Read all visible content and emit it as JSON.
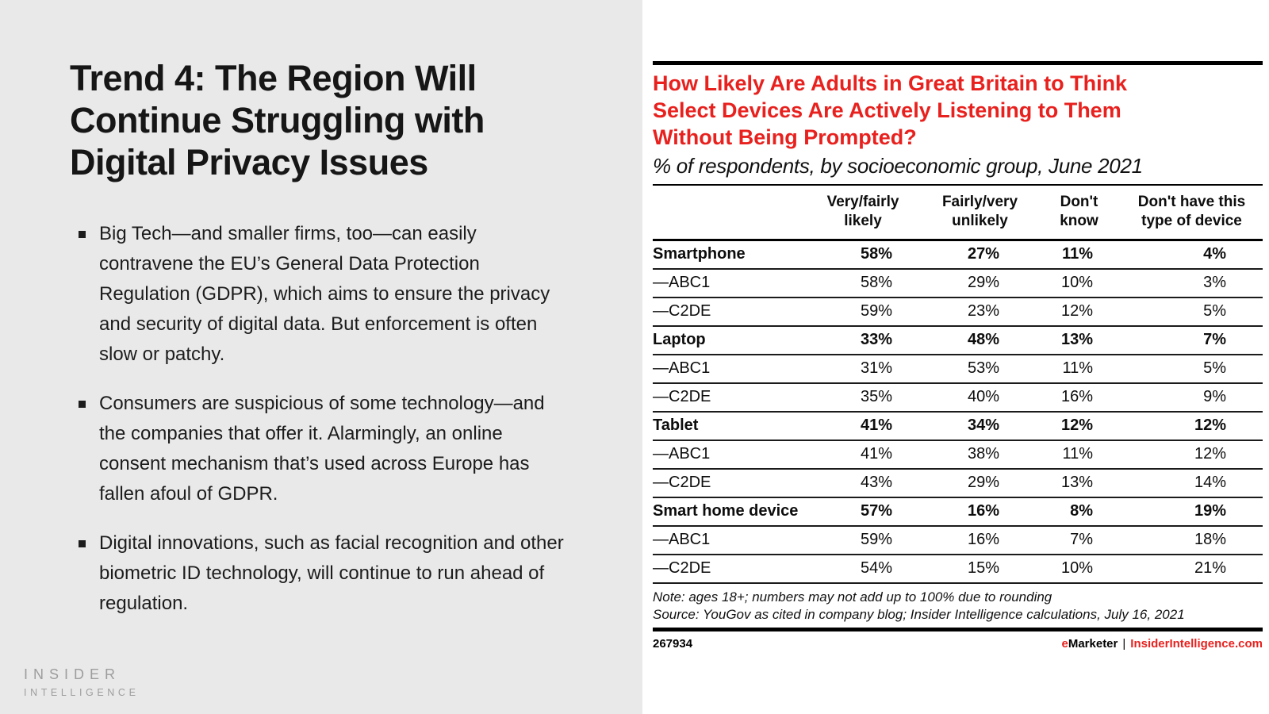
{
  "left_panel": {
    "title_lines": [
      "Trend 4: The Region Will",
      "Continue Struggling with",
      "Digital Privacy Issues"
    ],
    "bullets": [
      "Big Tech—and smaller firms, too—can easily contravene the EU’s General Data Protection Regulation (GDPR), which aims to ensure the privacy and security of digital data. But enforcement is often slow or patchy.",
      "Consumers are suspicious of some technology—and the companies that offer it. Alarmingly, an online consent mechanism that’s used across Europe has fallen afoul of GDPR.",
      "Digital innovations, such as facial recognition and other biometric ID technology, will continue to run ahead of regulation."
    ],
    "logo": {
      "line1": "INSIDER",
      "line2": "INTELLIGENCE"
    }
  },
  "chart": {
    "title_lines": [
      "How Likely Are Adults in Great Britain to Think",
      "Select Devices Are Actively Listening to Them",
      "Without Being Prompted?"
    ],
    "subtitle": "% of respondents, by socioeconomic group, June 2021",
    "columns": [
      {
        "line1": "Very/fairly",
        "line2": "likely"
      },
      {
        "line1": "Fairly/very",
        "line2": "unlikely"
      },
      {
        "line1": "Don't",
        "line2": "know"
      },
      {
        "line1": "Don't have this",
        "line2": "type of device"
      }
    ],
    "rows": [
      {
        "label": "Smartphone",
        "values": [
          "58%",
          "27%",
          "11%",
          "4%"
        ]
      },
      {
        "label": "—ABC1",
        "values": [
          "58%",
          "29%",
          "10%",
          "3%"
        ]
      },
      {
        "label": "—C2DE",
        "values": [
          "59%",
          "23%",
          "12%",
          "5%"
        ]
      },
      {
        "label": "Laptop",
        "values": [
          "33%",
          "48%",
          "13%",
          "7%"
        ]
      },
      {
        "label": "—ABC1",
        "values": [
          "31%",
          "53%",
          "11%",
          "5%"
        ]
      },
      {
        "label": "—C2DE",
        "values": [
          "35%",
          "40%",
          "16%",
          "9%"
        ]
      },
      {
        "label": "Tablet",
        "values": [
          "41%",
          "34%",
          "12%",
          "12%"
        ]
      },
      {
        "label": "—ABC1",
        "values": [
          "41%",
          "38%",
          "11%",
          "12%"
        ]
      },
      {
        "label": "—C2DE",
        "values": [
          "43%",
          "29%",
          "13%",
          "14%"
        ]
      },
      {
        "label": "Smart home device",
        "values": [
          "57%",
          "16%",
          "8%",
          "19%"
        ]
      },
      {
        "label": "—ABC1",
        "values": [
          "59%",
          "16%",
          "7%",
          "18%"
        ]
      },
      {
        "label": "—C2DE",
        "values": [
          "54%",
          "15%",
          "10%",
          "21%"
        ]
      }
    ],
    "note": "Note: ages 18+; numbers may not add up to 100% due to rounding",
    "source": "Source: YouGov as cited in company blog; Insider Intelligence calculations, July 16, 2021",
    "chart_id": "267934",
    "brand": {
      "e": "e",
      "rest": "Marketer",
      "separator": "|",
      "site": "InsiderIntelligence.com"
    }
  },
  "chart_data": {
    "type": "table",
    "title": "How Likely Are Adults in Great Britain to Think Select Devices Are Actively Listening to Them Without Being Prompted?",
    "subtitle": "% of respondents, by socioeconomic group, June 2021",
    "columns": [
      "Very/fairly likely",
      "Fairly/very unlikely",
      "Don't know",
      "Don't have this type of device"
    ],
    "rows": [
      {
        "label": "Smartphone",
        "values_pct": [
          58,
          27,
          11,
          4
        ]
      },
      {
        "label": "—ABC1",
        "values_pct": [
          58,
          29,
          10,
          3
        ]
      },
      {
        "label": "—C2DE",
        "values_pct": [
          59,
          23,
          12,
          5
        ]
      },
      {
        "label": "Laptop",
        "values_pct": [
          33,
          48,
          13,
          7
        ]
      },
      {
        "label": "—ABC1",
        "values_pct": [
          31,
          53,
          11,
          5
        ]
      },
      {
        "label": "—C2DE",
        "values_pct": [
          35,
          40,
          16,
          9
        ]
      },
      {
        "label": "Tablet",
        "values_pct": [
          41,
          34,
          12,
          12
        ]
      },
      {
        "label": "—ABC1",
        "values_pct": [
          41,
          38,
          11,
          12
        ]
      },
      {
        "label": "—C2DE",
        "values_pct": [
          43,
          29,
          13,
          14
        ]
      },
      {
        "label": "Smart home device",
        "values_pct": [
          57,
          16,
          8,
          19
        ]
      },
      {
        "label": "—ABC1",
        "values_pct": [
          59,
          16,
          7,
          18
        ]
      },
      {
        "label": "—C2DE",
        "values_pct": [
          54,
          15,
          10,
          21
        ]
      }
    ],
    "note": "Note: ages 18+; numbers may not add up to 100% due to rounding",
    "source": "Source: YouGov as cited in company blog; Insider Intelligence calculations, July 16, 2021"
  },
  "colors": {
    "accent_red": "#E8211E",
    "panel_gray": "#E9E9E9",
    "logo_gray": "#9D9D9D",
    "text_black": "#111111"
  }
}
